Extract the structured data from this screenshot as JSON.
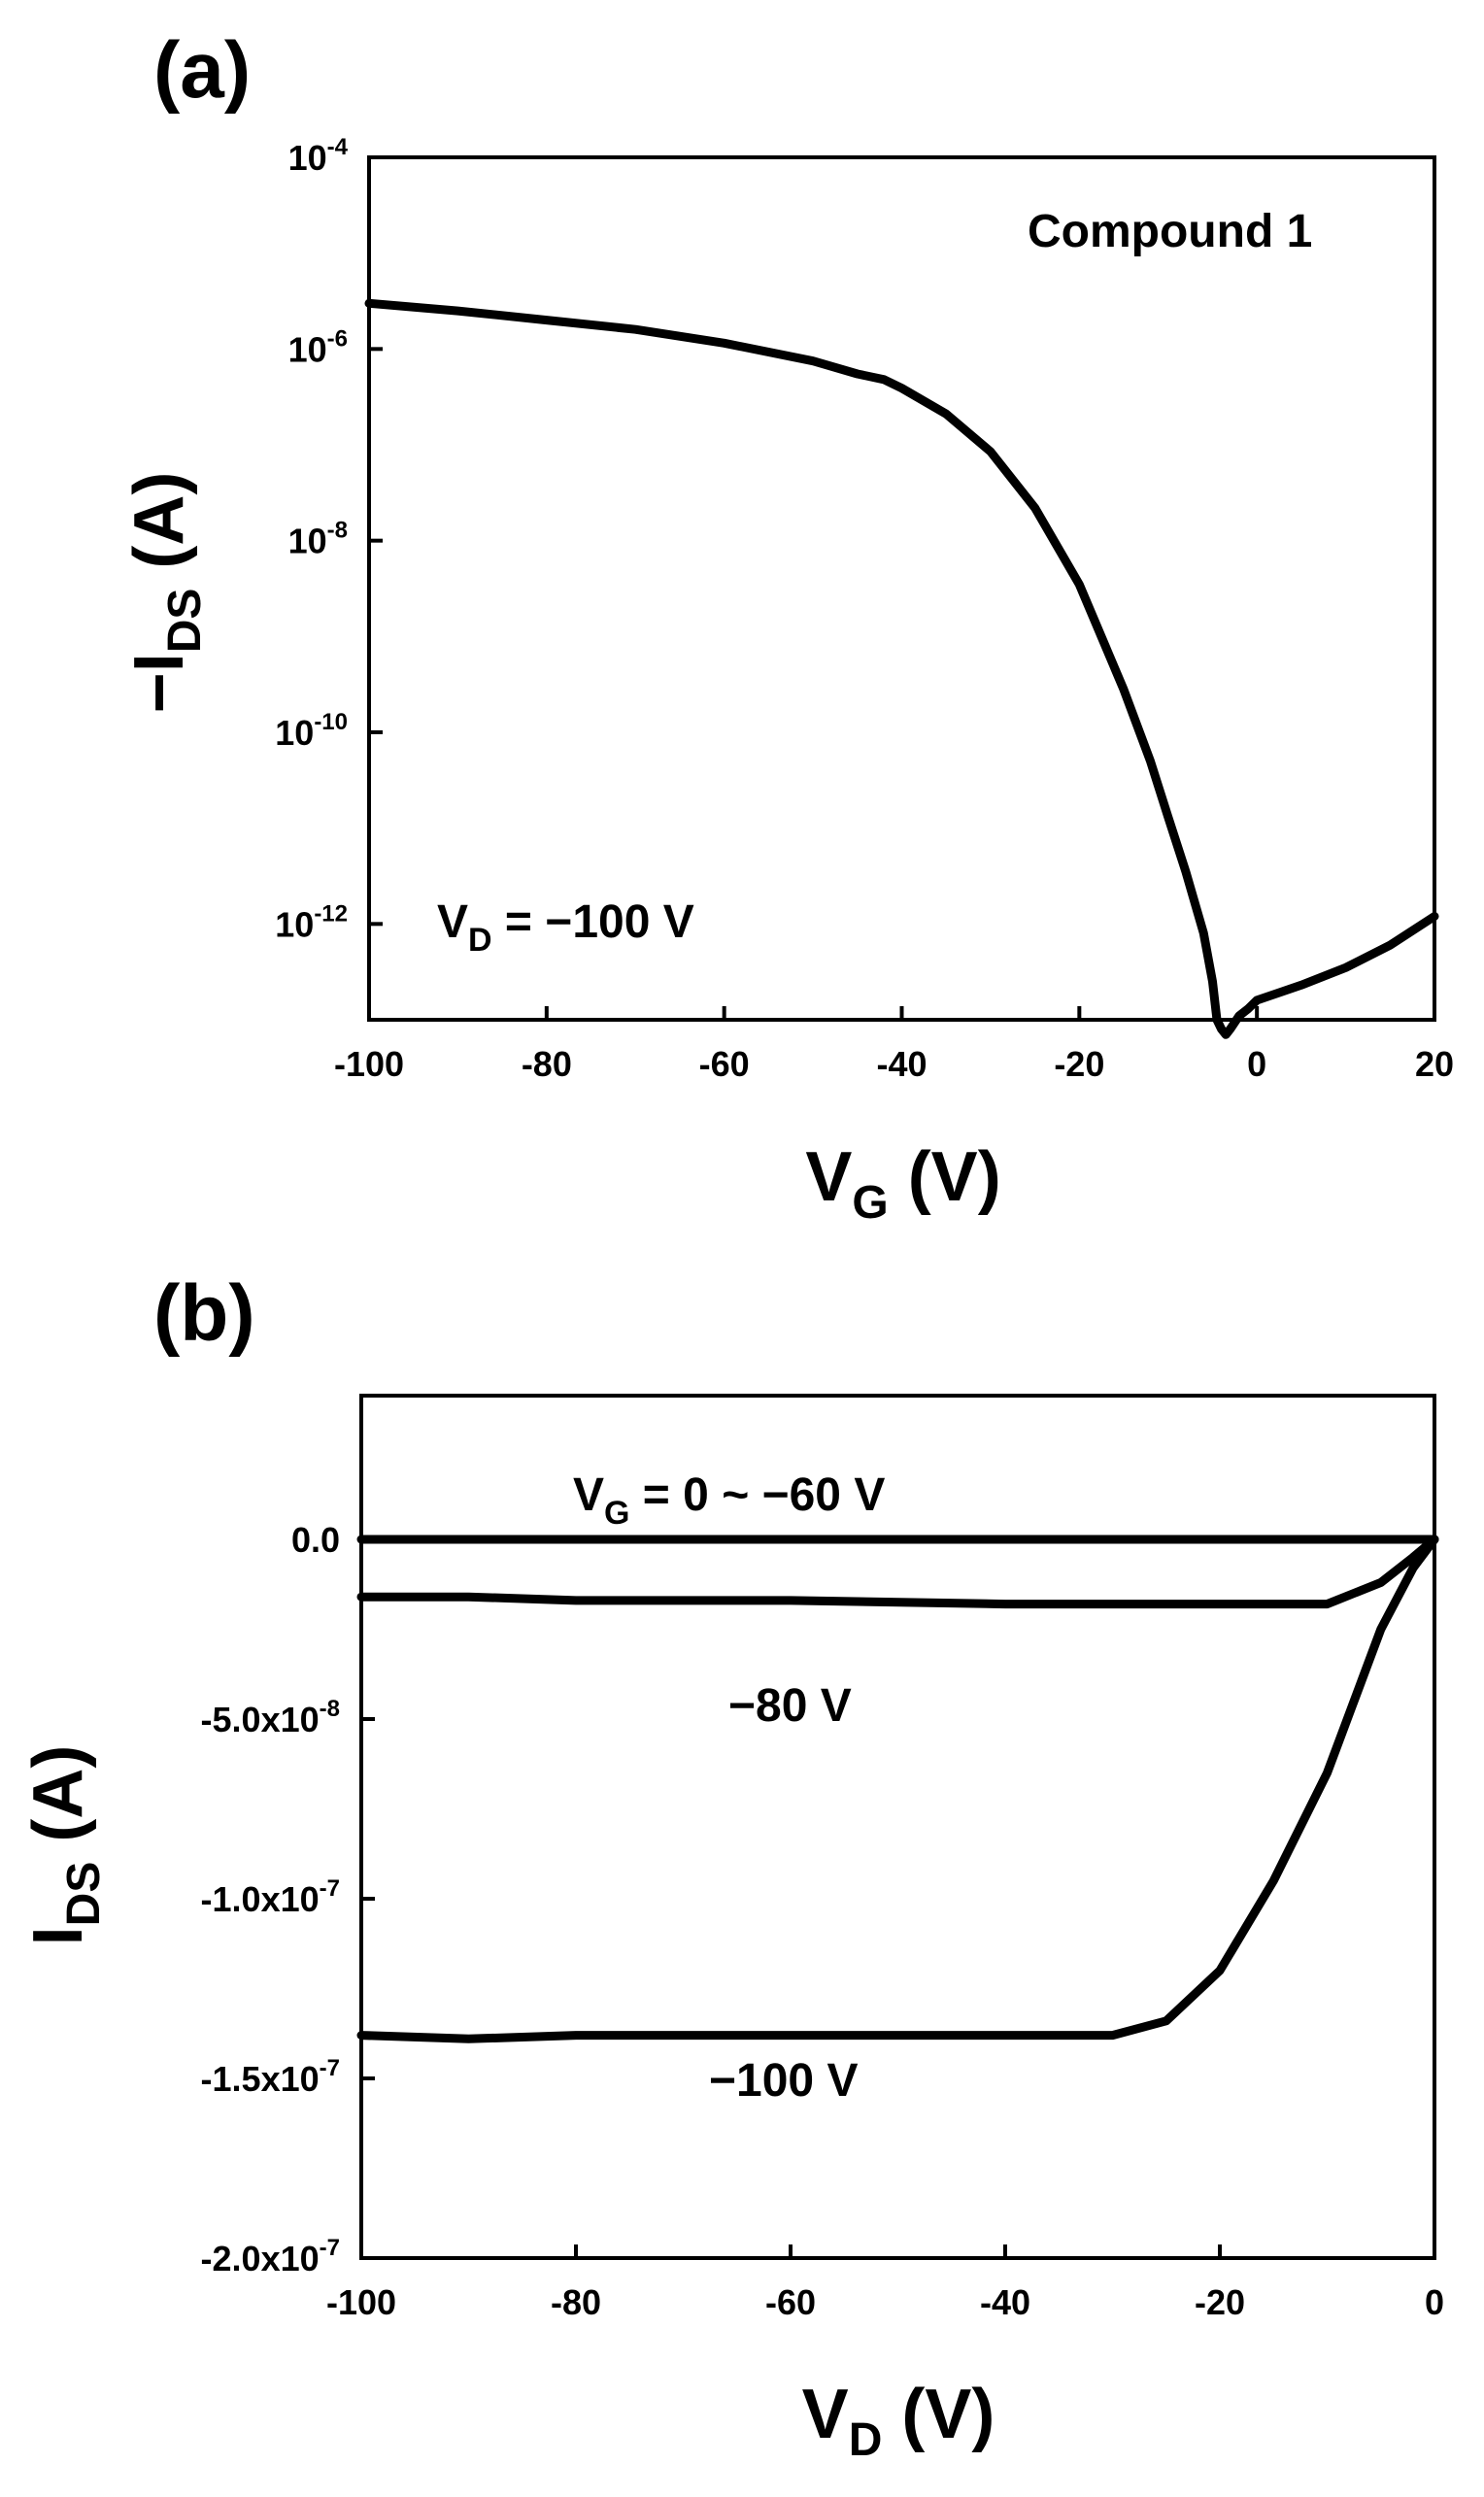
{
  "chart_data": [
    {
      "type": "line",
      "panel_label": "(a)",
      "title": "Compound 1",
      "xlabel": {
        "main": "V",
        "sub": "G",
        "unit": " (V)"
      },
      "ylabel": {
        "prefix": "−I",
        "sub": "DS",
        "unit": " (A)"
      },
      "xlim": [
        -100,
        20
      ],
      "ylim": [
        1e-13,
        0.0001
      ],
      "yscale": "log",
      "xticks": [
        -100,
        -80,
        -60,
        -40,
        -20,
        0,
        20
      ],
      "xtick_labels": [
        "-100",
        "-80",
        "-60",
        "-40",
        "-20",
        "0",
        "20"
      ],
      "yticks": [
        0.0001,
        1e-06,
        1e-08,
        1e-10,
        1e-12
      ],
      "ytick_labels": [
        {
          "base": "10",
          "exp": "-4"
        },
        {
          "base": "10",
          "exp": "-6"
        },
        {
          "base": "10",
          "exp": "-8"
        },
        {
          "base": "10",
          "exp": "-10"
        },
        {
          "base": "10",
          "exp": "-12"
        }
      ],
      "annotations": [
        {
          "main": "V",
          "sub": "D",
          "rest": " = −100 V"
        }
      ],
      "legend": "none",
      "grid": false,
      "series": [
        {
          "x": [
            -100,
            -90,
            -80,
            -70,
            -60,
            -50,
            -45,
            -42,
            -40,
            -35,
            -30,
            -25,
            -20,
            -15,
            -12,
            -10,
            -8,
            -6,
            -5,
            -4.5,
            -4,
            -3.5,
            -3,
            -2,
            -1,
            0,
            5,
            10,
            15,
            20
          ],
          "y": [
            3e-06,
            2.5e-06,
            2e-06,
            1.6e-06,
            1.15e-06,
            7.5e-07,
            5.5e-07,
            4.8e-07,
            3.9e-07,
            2.1e-07,
            8.5e-08,
            2.2e-08,
            3.5e-09,
            2.8e-10,
            5e-11,
            1.3e-11,
            3.5e-12,
            8e-13,
            2.5e-13,
            1e-13,
            8e-14,
            7e-14,
            8e-14,
            1.1e-13,
            1.3e-13,
            1.6e-13,
            2.3e-13,
            3.5e-13,
            6e-13,
            1.2e-12
          ]
        }
      ]
    },
    {
      "type": "line",
      "panel_label": "(b)",
      "xlabel": {
        "main": "V",
        "sub": "D",
        "unit": " (V)"
      },
      "ylabel": {
        "prefix": "I",
        "sub": "DS",
        "unit": " (A)"
      },
      "xlim": [
        -100,
        0
      ],
      "ylim": [
        -2e-07,
        4e-08
      ],
      "xticks": [
        -100,
        -80,
        -60,
        -40,
        -20,
        0
      ],
      "xtick_labels": [
        "-100",
        "-80",
        "-60",
        "-40",
        "-20",
        "0"
      ],
      "yticks": [
        0,
        -5e-08,
        -1e-07,
        -1.5e-07,
        -2e-07
      ],
      "ytick_labels": [
        {
          "base": "0.0",
          "exp": ""
        },
        {
          "base": "-5.0x10",
          "exp": "-8"
        },
        {
          "base": "-1.0x10",
          "exp": "-7"
        },
        {
          "base": "-1.5x10",
          "exp": "-7"
        },
        {
          "base": "-2.0x10",
          "exp": "-7"
        }
      ],
      "annotations": [
        {
          "main": "V",
          "sub": "G",
          "rest": " = 0 ~ −60 V"
        },
        {
          "main": "−80 V",
          "sub": "",
          "rest": ""
        },
        {
          "main": "−100 V",
          "sub": "",
          "rest": ""
        }
      ],
      "legend": "none",
      "grid": false,
      "series": [
        {
          "x": [
            -100,
            -80,
            -60,
            -40,
            -20,
            -10,
            0
          ],
          "y": [
            0,
            0,
            0,
            0,
            0,
            0,
            0
          ]
        },
        {
          "x": [
            -100,
            -90,
            -80,
            -60,
            -40,
            -20,
            -10,
            -5,
            -2,
            0
          ],
          "y": [
            -1.6e-08,
            -1.6e-08,
            -1.7e-08,
            -1.7e-08,
            -1.8e-08,
            -1.8e-08,
            -1.8e-08,
            -1.2e-08,
            -5e-09,
            0
          ]
        },
        {
          "x": [
            -100,
            -90,
            -80,
            -60,
            -40,
            -30,
            -25,
            -20,
            -15,
            -10,
            -5,
            -2,
            0
          ],
          "y": [
            -1.38e-07,
            -1.39e-07,
            -1.38e-07,
            -1.38e-07,
            -1.38e-07,
            -1.38e-07,
            -1.34e-07,
            -1.2e-07,
            -9.5e-08,
            -6.5e-08,
            -2.5e-08,
            -8e-09,
            0
          ]
        }
      ]
    }
  ]
}
